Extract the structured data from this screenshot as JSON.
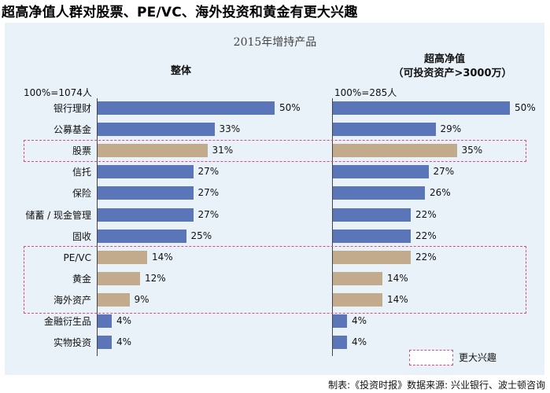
{
  "title": "超高净值人群对股票、PE/VC、海外投资和黄金有更大兴趣",
  "footer": "制表:《投资时报》数据来源: 兴业银行、波士顿咨询",
  "colors": {
    "normal": "#5a75b8",
    "highlight": "#c2ab8d",
    "highlight_border": "#d64b8e",
    "panel": "#e9f2f9"
  },
  "chart_data": {
    "type": "bar",
    "orientation": "horizontal",
    "title": "2015年增持产品",
    "categories": [
      "银行理财",
      "公募基金",
      "股票",
      "信托",
      "保险",
      "储蓄 / 现金管理",
      "固收",
      "PE/VC",
      "黄金",
      "海外资产",
      "金融衍生品",
      "实物投资"
    ],
    "highlighted": [
      "股票",
      "PE/VC",
      "黄金",
      "海外资产"
    ],
    "panels": [
      {
        "header": "整体",
        "base": "100%=1074人",
        "values": [
          50,
          33,
          31,
          27,
          27,
          27,
          25,
          14,
          12,
          9,
          4,
          4
        ],
        "labels": [
          "50%",
          "33%",
          "31%",
          "27%",
          "27%",
          "27%",
          "25%",
          "14%",
          "12%",
          "9%",
          "4%",
          "4%"
        ]
      },
      {
        "header_line1": "超高净值",
        "header_line2": "（可投资资产>3000万）",
        "base": "100%=285人",
        "values": [
          50,
          29,
          35,
          27,
          26,
          22,
          22,
          22,
          14,
          14,
          4,
          4
        ],
        "labels": [
          "50%",
          "29%",
          "35%",
          "27%",
          "26%",
          "22%",
          "22%",
          "22%",
          "14%",
          "14%",
          "4%",
          "4%"
        ]
      }
    ],
    "legend": {
      "label": "更大兴趣",
      "placement": "bottom-right"
    },
    "unit": "%"
  }
}
